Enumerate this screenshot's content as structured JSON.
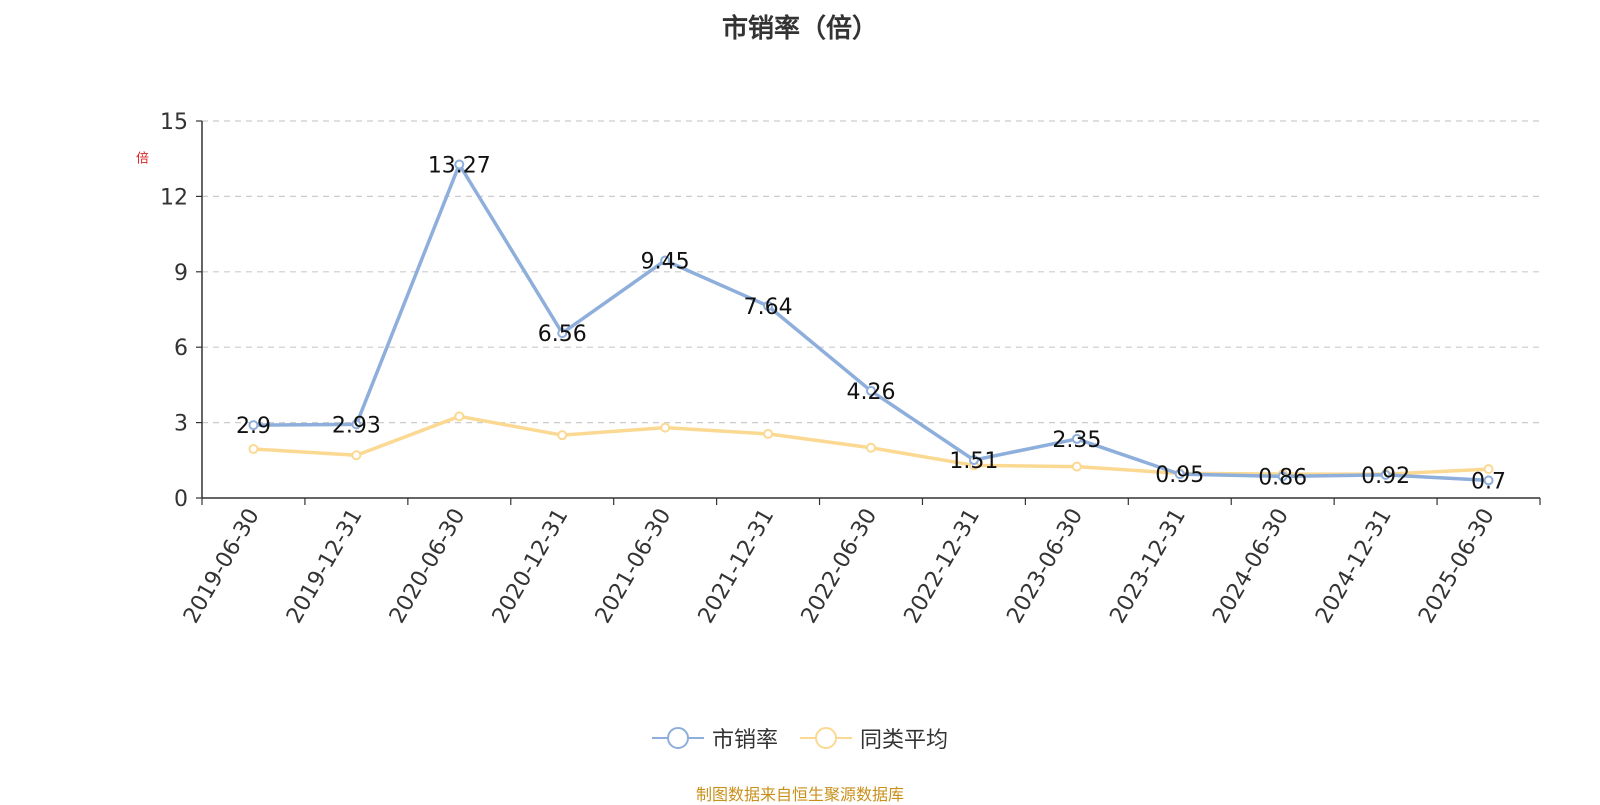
{
  "title": "市销率（倍）",
  "y_unit": "倍",
  "source": "制图数据来自恒生聚源数据库",
  "legend": [
    {
      "label": "市销率",
      "color": "#8eaedb"
    },
    {
      "label": "同类平均",
      "color": "#fbd993"
    }
  ],
  "chart_data": {
    "type": "line",
    "categories": [
      "2019-06-30",
      "2019-12-31",
      "2020-06-30",
      "2020-12-31",
      "2021-06-30",
      "2021-12-31",
      "2022-06-30",
      "2022-12-31",
      "2023-06-30",
      "2023-12-31",
      "2024-06-30",
      "2024-12-31",
      "2025-06-30"
    ],
    "ylim": [
      0,
      15
    ],
    "yticks": [
      0,
      3,
      6,
      9,
      12,
      15
    ],
    "grid": true,
    "legend_position": "bottom",
    "series": [
      {
        "name": "市销率",
        "color": "#8eaedb",
        "values": [
          2.9,
          2.93,
          13.27,
          6.56,
          9.45,
          7.64,
          4.26,
          1.51,
          2.35,
          0.95,
          0.86,
          0.92,
          0.7
        ],
        "data_labels": [
          "2.9",
          "2.93",
          "13.27",
          "6.56",
          "9.45",
          "7.64",
          "4.26",
          "1.51",
          "2.35",
          "0.95",
          "0.86",
          "0.92",
          "0.7"
        ]
      },
      {
        "name": "同类平均",
        "color": "#fbd993",
        "values": [
          1.95,
          1.7,
          3.25,
          2.5,
          2.8,
          2.55,
          2.0,
          1.3,
          1.25,
          0.98,
          0.95,
          0.95,
          1.15
        ]
      }
    ]
  }
}
